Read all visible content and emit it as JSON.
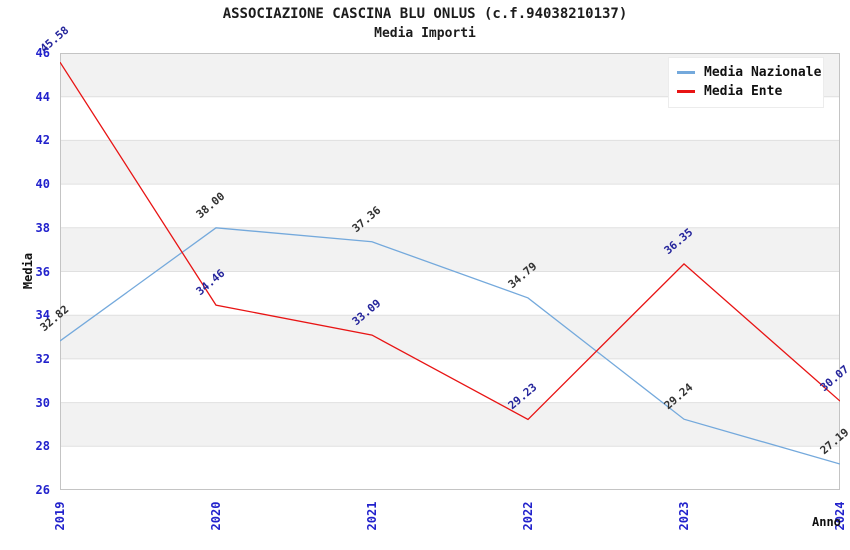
{
  "header": {
    "title": "ASSOCIAZIONE CASCINA BLU ONLUS (c.f.94038210137)",
    "subtitle": "Media Importi"
  },
  "chart_data": {
    "type": "line",
    "title": "ASSOCIAZIONE CASCINA BLU ONLUS (c.f.94038210137)",
    "subtitle": "Media Importi",
    "xlabel": "Anno",
    "ylabel": "Media",
    "categories": [
      "2019",
      "2020",
      "2021",
      "2022",
      "2023",
      "2024"
    ],
    "series": [
      {
        "name": "Media Nazionale",
        "color": "#74a9dc",
        "label_color": "#333333",
        "values": [
          32.82,
          38.0,
          37.36,
          34.79,
          29.24,
          27.19
        ]
      },
      {
        "name": "Media Ente",
        "color": "#e81414",
        "label_color": "#26269c",
        "values": [
          45.58,
          34.46,
          33.09,
          29.23,
          36.35,
          30.07
        ]
      }
    ],
    "ylim": [
      26,
      46
    ],
    "y_tick_step": 2,
    "y_ticks": [
      "46",
      "44",
      "42",
      "40",
      "38",
      "36",
      "34",
      "32",
      "30",
      "28",
      "26"
    ],
    "grid": "horizontal gridlines with alternating gray bands",
    "legend_position": "top-right",
    "point_labels_decimals": 2,
    "colors": {
      "tick_label": "#2222cc",
      "band_fill": "#f2f2f2",
      "grid_line": "#e0e0e0",
      "plot_border": "#c4c4c4",
      "title_text": "#1c1c1c"
    }
  }
}
